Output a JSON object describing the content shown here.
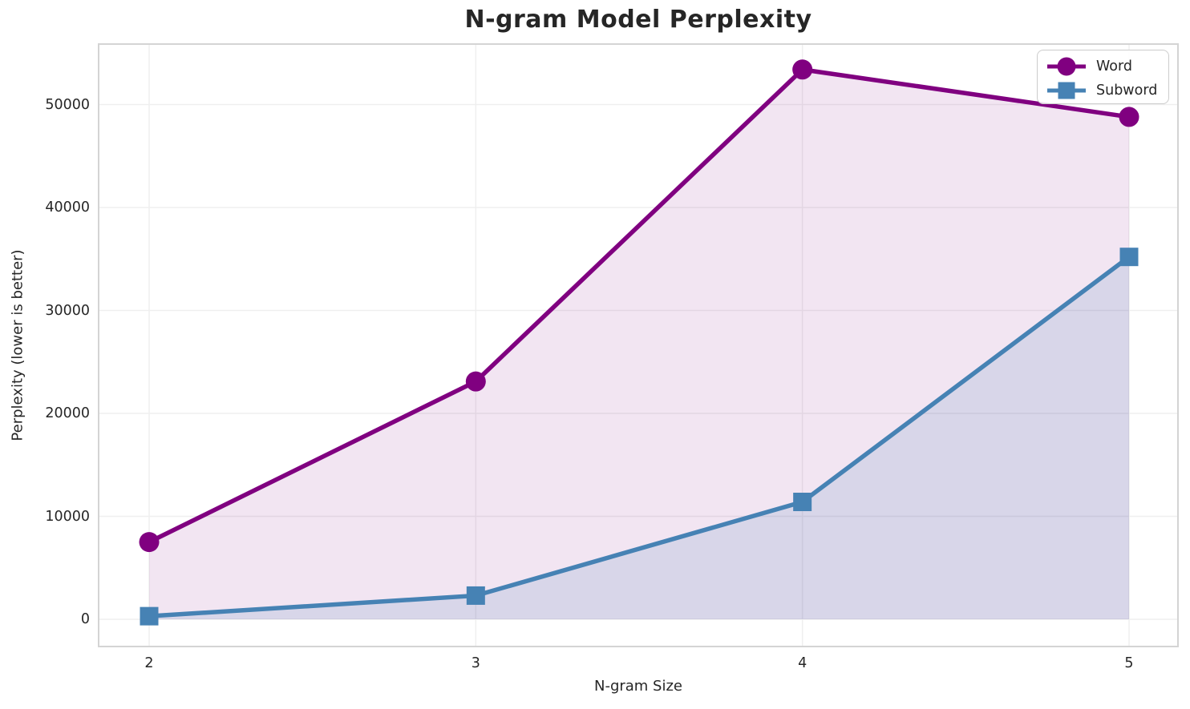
{
  "chart_data": {
    "type": "line",
    "title": "N-gram Model Perplexity",
    "xlabel": "N-gram Size",
    "ylabel": "Perplexity (lower is better)",
    "x": [
      2,
      3,
      4,
      5
    ],
    "x_tick_labels": [
      "2",
      "3",
      "4",
      "5"
    ],
    "y_ticks": [
      0,
      10000,
      20000,
      30000,
      40000,
      50000
    ],
    "y_tick_labels": [
      "0",
      "10000",
      "20000",
      "30000",
      "40000",
      "50000"
    ],
    "ylim": [
      -2650,
      55900
    ],
    "xlim": [
      1.85,
      5.15
    ],
    "grid": true,
    "grid_color": "#efefef",
    "spine_color": "#d4d4d4",
    "background_color": "#ffffff",
    "legend_position": "upper right",
    "series": [
      {
        "name": "Word",
        "marker": "circle",
        "color": "#800080",
        "fill_alpha": 0.1,
        "values": [
          7500,
          23100,
          53400,
          48800
        ]
      },
      {
        "name": "Subword",
        "marker": "square",
        "color": "#4682b4",
        "fill_alpha": 0.15,
        "values": [
          300,
          2300,
          11400,
          35200
        ]
      }
    ]
  }
}
